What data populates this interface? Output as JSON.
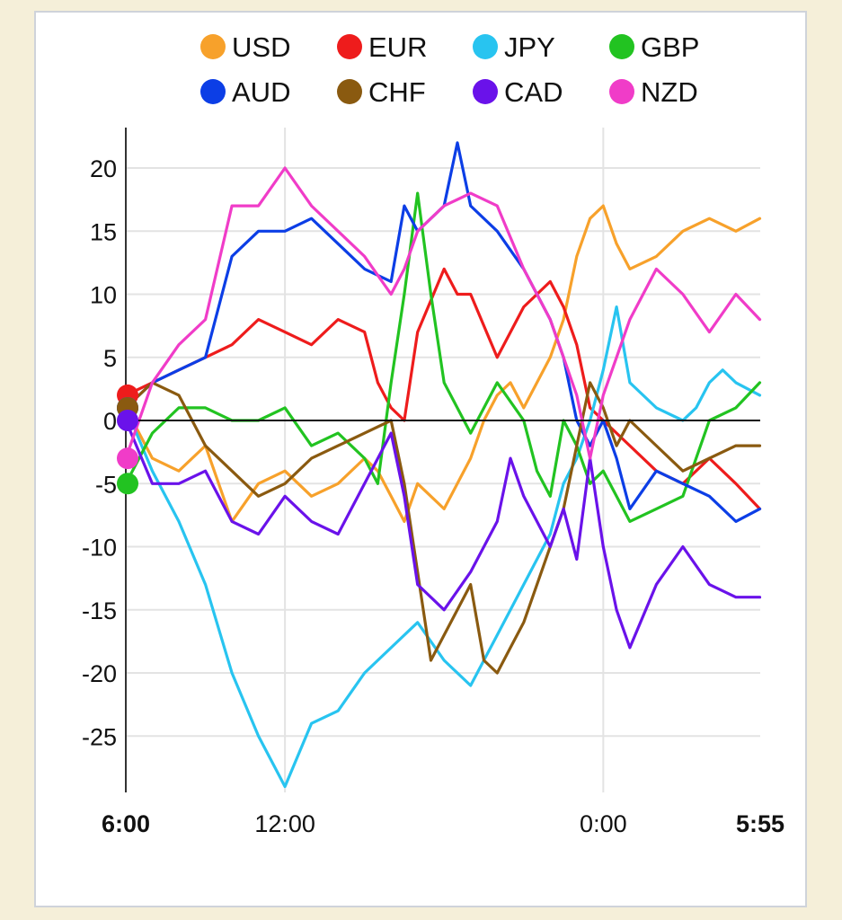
{
  "chart_data": {
    "type": "line",
    "x_tick_labels": [
      {
        "label": "6:00",
        "hours": 0,
        "bold": true
      },
      {
        "label": "12:00",
        "hours": 6,
        "bold": false
      },
      {
        "label": "0:00",
        "hours": 18,
        "bold": false
      },
      {
        "label": "5:55",
        "hours": 23.917,
        "bold": true
      }
    ],
    "xlim": [
      0,
      23.917
    ],
    "ylim": [
      -29.5,
      23.5
    ],
    "y_ticks": [
      20,
      15,
      10,
      5,
      0,
      -5,
      -10,
      -15,
      -20,
      -25
    ],
    "grid": true,
    "legend_position": "top",
    "series": [
      {
        "name": "USD",
        "color": "#f7a12b",
        "points": [
          [
            0,
            1
          ],
          [
            1,
            -3
          ],
          [
            2,
            -4
          ],
          [
            2.5,
            -3
          ],
          [
            3,
            -2
          ],
          [
            4,
            -8
          ],
          [
            5,
            -5
          ],
          [
            6,
            -4
          ],
          [
            7,
            -6
          ],
          [
            8,
            -5
          ],
          [
            9,
            -3
          ],
          [
            9.5,
            -4
          ],
          [
            10,
            -6
          ],
          [
            10.5,
            -8
          ],
          [
            11,
            -5
          ],
          [
            12,
            -7
          ],
          [
            13,
            -3
          ],
          [
            13.5,
            0
          ],
          [
            14,
            2
          ],
          [
            14.5,
            3
          ],
          [
            15,
            1
          ],
          [
            16,
            5
          ],
          [
            16.5,
            8
          ],
          [
            17,
            13
          ],
          [
            17.5,
            16
          ],
          [
            18,
            17
          ],
          [
            18.5,
            14
          ],
          [
            19,
            12
          ],
          [
            20,
            13
          ],
          [
            21,
            15
          ],
          [
            22,
            16
          ],
          [
            23,
            15
          ],
          [
            23.9,
            16
          ]
        ]
      },
      {
        "name": "EUR",
        "color": "#ee1c1c",
        "points": [
          [
            0,
            2
          ],
          [
            1,
            3
          ],
          [
            2,
            4
          ],
          [
            3,
            5
          ],
          [
            4,
            6
          ],
          [
            5,
            8
          ],
          [
            6,
            7
          ],
          [
            7,
            6
          ],
          [
            8,
            8
          ],
          [
            9,
            7
          ],
          [
            9.5,
            3
          ],
          [
            10,
            1
          ],
          [
            10.5,
            0
          ],
          [
            11,
            7
          ],
          [
            12,
            12
          ],
          [
            12.5,
            10
          ],
          [
            13,
            10
          ],
          [
            14,
            5
          ],
          [
            15,
            9
          ],
          [
            16,
            11
          ],
          [
            16.5,
            9
          ],
          [
            17,
            6
          ],
          [
            17.5,
            1
          ],
          [
            18,
            0
          ],
          [
            19,
            -2
          ],
          [
            20,
            -4
          ],
          [
            21,
            -5
          ],
          [
            22,
            -3
          ],
          [
            23,
            -5
          ],
          [
            23.9,
            -7
          ]
        ]
      },
      {
        "name": "JPY",
        "color": "#28c4f0",
        "points": [
          [
            0,
            1
          ],
          [
            1,
            -4
          ],
          [
            2,
            -8
          ],
          [
            3,
            -13
          ],
          [
            4,
            -20
          ],
          [
            5,
            -25
          ],
          [
            6,
            -29
          ],
          [
            7,
            -24
          ],
          [
            8,
            -23
          ],
          [
            9,
            -20
          ],
          [
            10,
            -18
          ],
          [
            11,
            -16
          ],
          [
            12,
            -19
          ],
          [
            13,
            -21
          ],
          [
            14,
            -17
          ],
          [
            15,
            -13
          ],
          [
            16,
            -9
          ],
          [
            16.5,
            -5
          ],
          [
            17,
            -3
          ],
          [
            17.5,
            0
          ],
          [
            18,
            4
          ],
          [
            18.5,
            9
          ],
          [
            19,
            3
          ],
          [
            20,
            1
          ],
          [
            21,
            0
          ],
          [
            21.5,
            1
          ],
          [
            22,
            3
          ],
          [
            22.5,
            4
          ],
          [
            23,
            3
          ],
          [
            23.9,
            2
          ]
        ]
      },
      {
        "name": "GBP",
        "color": "#22c321",
        "points": [
          [
            0,
            -5
          ],
          [
            1,
            -1
          ],
          [
            2,
            1
          ],
          [
            3,
            1
          ],
          [
            4,
            0
          ],
          [
            5,
            0
          ],
          [
            6,
            1
          ],
          [
            7,
            -2
          ],
          [
            8,
            -1
          ],
          [
            9,
            -3
          ],
          [
            9.5,
            -5
          ],
          [
            10,
            3
          ],
          [
            10.5,
            10
          ],
          [
            11,
            18
          ],
          [
            11.5,
            10
          ],
          [
            12,
            3
          ],
          [
            13,
            -1
          ],
          [
            14,
            3
          ],
          [
            15,
            0
          ],
          [
            15.5,
            -4
          ],
          [
            16,
            -6
          ],
          [
            16.5,
            0
          ],
          [
            17,
            -2
          ],
          [
            17.5,
            -5
          ],
          [
            18,
            -4
          ],
          [
            19,
            -8
          ],
          [
            20,
            -7
          ],
          [
            21,
            -6
          ],
          [
            22,
            0
          ],
          [
            23,
            1
          ],
          [
            23.9,
            3
          ]
        ]
      },
      {
        "name": "AUD",
        "color": "#0c3ee6",
        "points": [
          [
            0,
            1
          ],
          [
            1,
            3
          ],
          [
            2,
            4
          ],
          [
            3,
            5
          ],
          [
            4,
            13
          ],
          [
            5,
            15
          ],
          [
            6,
            15
          ],
          [
            7,
            16
          ],
          [
            8,
            14
          ],
          [
            9,
            12
          ],
          [
            10,
            11
          ],
          [
            10.5,
            17
          ],
          [
            11,
            15
          ],
          [
            12,
            17
          ],
          [
            12.5,
            22
          ],
          [
            13,
            17
          ],
          [
            14,
            15
          ],
          [
            15,
            12
          ],
          [
            16,
            8
          ],
          [
            16.5,
            5
          ],
          [
            17,
            0
          ],
          [
            17.5,
            -2
          ],
          [
            18,
            0
          ],
          [
            18.5,
            -3
          ],
          [
            19,
            -7
          ],
          [
            20,
            -4
          ],
          [
            21,
            -5
          ],
          [
            22,
            -6
          ],
          [
            23,
            -8
          ],
          [
            23.9,
            -7
          ]
        ]
      },
      {
        "name": "CHF",
        "color": "#8a5a10",
        "points": [
          [
            0,
            1
          ],
          [
            1,
            3
          ],
          [
            2,
            2
          ],
          [
            3,
            -2
          ],
          [
            4,
            -4
          ],
          [
            5,
            -6
          ],
          [
            6,
            -5
          ],
          [
            7,
            -3
          ],
          [
            8,
            -2
          ],
          [
            9,
            -1
          ],
          [
            10,
            0
          ],
          [
            10.5,
            -5
          ],
          [
            11,
            -12
          ],
          [
            11.5,
            -19
          ],
          [
            12,
            -17
          ],
          [
            13,
            -13
          ],
          [
            13.5,
            -19
          ],
          [
            14,
            -20
          ],
          [
            14.5,
            -18
          ],
          [
            15,
            -16
          ],
          [
            16,
            -10
          ],
          [
            16.5,
            -7
          ],
          [
            17,
            -2
          ],
          [
            17.5,
            3
          ],
          [
            18,
            1
          ],
          [
            18.5,
            -2
          ],
          [
            19,
            0
          ],
          [
            20,
            -2
          ],
          [
            21,
            -4
          ],
          [
            22,
            -3
          ],
          [
            23,
            -2
          ],
          [
            23.9,
            -2
          ]
        ]
      },
      {
        "name": "CAD",
        "color": "#6a12ea",
        "points": [
          [
            0,
            0
          ],
          [
            1,
            -5
          ],
          [
            2,
            -5
          ],
          [
            3,
            -4
          ],
          [
            4,
            -8
          ],
          [
            5,
            -9
          ],
          [
            6,
            -6
          ],
          [
            7,
            -8
          ],
          [
            8,
            -9
          ],
          [
            9,
            -5
          ],
          [
            10,
            -1
          ],
          [
            10.5,
            -6
          ],
          [
            11,
            -13
          ],
          [
            12,
            -15
          ],
          [
            13,
            -12
          ],
          [
            14,
            -8
          ],
          [
            14.5,
            -3
          ],
          [
            15,
            -6
          ],
          [
            16,
            -10
          ],
          [
            16.5,
            -7
          ],
          [
            17,
            -11
          ],
          [
            17.5,
            -3
          ],
          [
            18,
            -10
          ],
          [
            18.5,
            -15
          ],
          [
            19,
            -18
          ],
          [
            20,
            -13
          ],
          [
            21,
            -10
          ],
          [
            22,
            -13
          ],
          [
            23,
            -14
          ],
          [
            23.9,
            -14
          ]
        ]
      },
      {
        "name": "NZD",
        "color": "#f03cc8",
        "points": [
          [
            0,
            -3
          ],
          [
            1,
            3
          ],
          [
            2,
            6
          ],
          [
            3,
            8
          ],
          [
            4,
            17
          ],
          [
            5,
            17
          ],
          [
            6,
            20
          ],
          [
            7,
            17
          ],
          [
            8,
            15
          ],
          [
            9,
            13
          ],
          [
            10,
            10
          ],
          [
            10.5,
            12
          ],
          [
            11,
            15
          ],
          [
            12,
            17
          ],
          [
            13,
            18
          ],
          [
            14,
            17
          ],
          [
            15,
            12
          ],
          [
            16,
            8
          ],
          [
            16.5,
            5
          ],
          [
            17,
            2
          ],
          [
            17.5,
            -3
          ],
          [
            18,
            2
          ],
          [
            18.5,
            5
          ],
          [
            19,
            8
          ],
          [
            20,
            12
          ],
          [
            21,
            10
          ],
          [
            22,
            7
          ],
          [
            23,
            10
          ],
          [
            23.9,
            8
          ]
        ]
      }
    ]
  }
}
